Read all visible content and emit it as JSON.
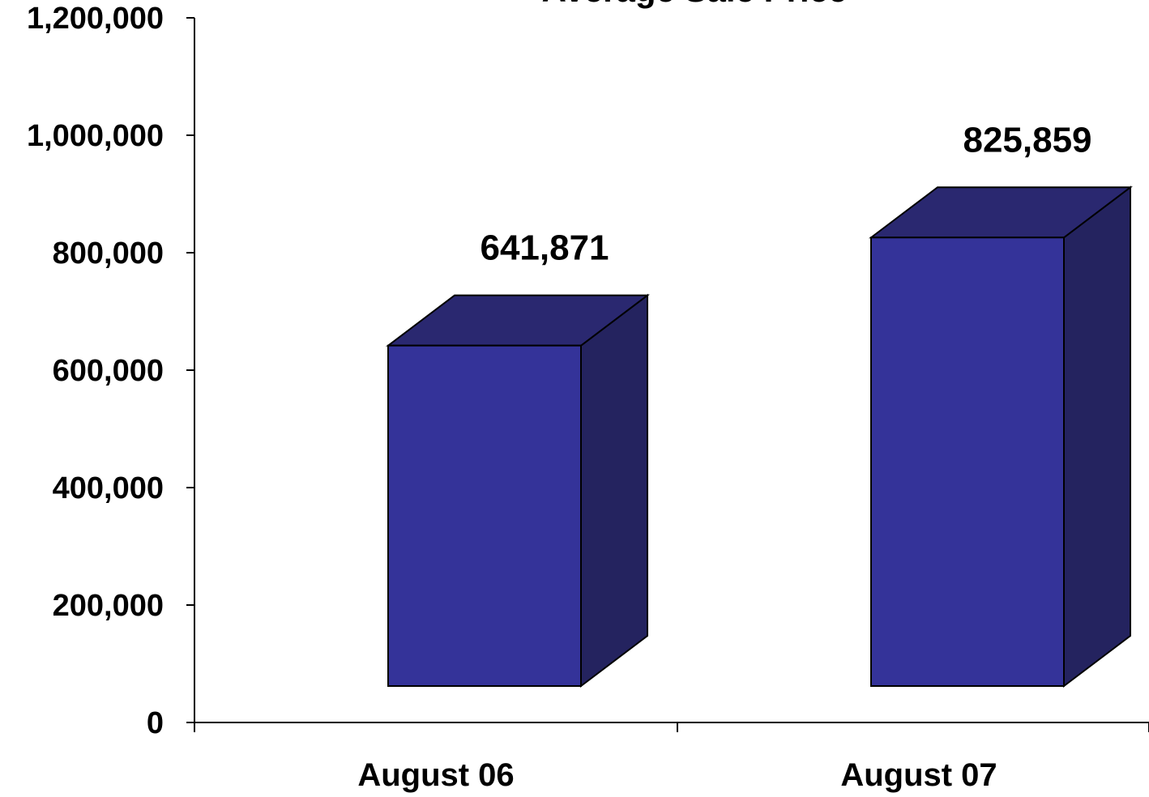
{
  "chart_data": {
    "type": "bar",
    "title": "Average Sale Price",
    "xlabel": "",
    "ylabel": "",
    "categories": [
      "August 06",
      "August 07"
    ],
    "values": [
      641871,
      825859
    ],
    "data_labels": [
      "641,871",
      "825,859"
    ],
    "ylim": [
      0,
      1200000
    ],
    "yticks": [
      0,
      200000,
      400000,
      600000,
      800000,
      1000000,
      1200000
    ],
    "ytick_labels": [
      "0",
      "200,000",
      "400,000",
      "600,000",
      "800,000",
      "1,000,000",
      "1,200,000"
    ],
    "grid": false,
    "legend": "none",
    "style": "3d-column",
    "colors": {
      "front": "#343399",
      "top": "#2a2870",
      "side": "#24235f",
      "outline": "#000000"
    }
  }
}
